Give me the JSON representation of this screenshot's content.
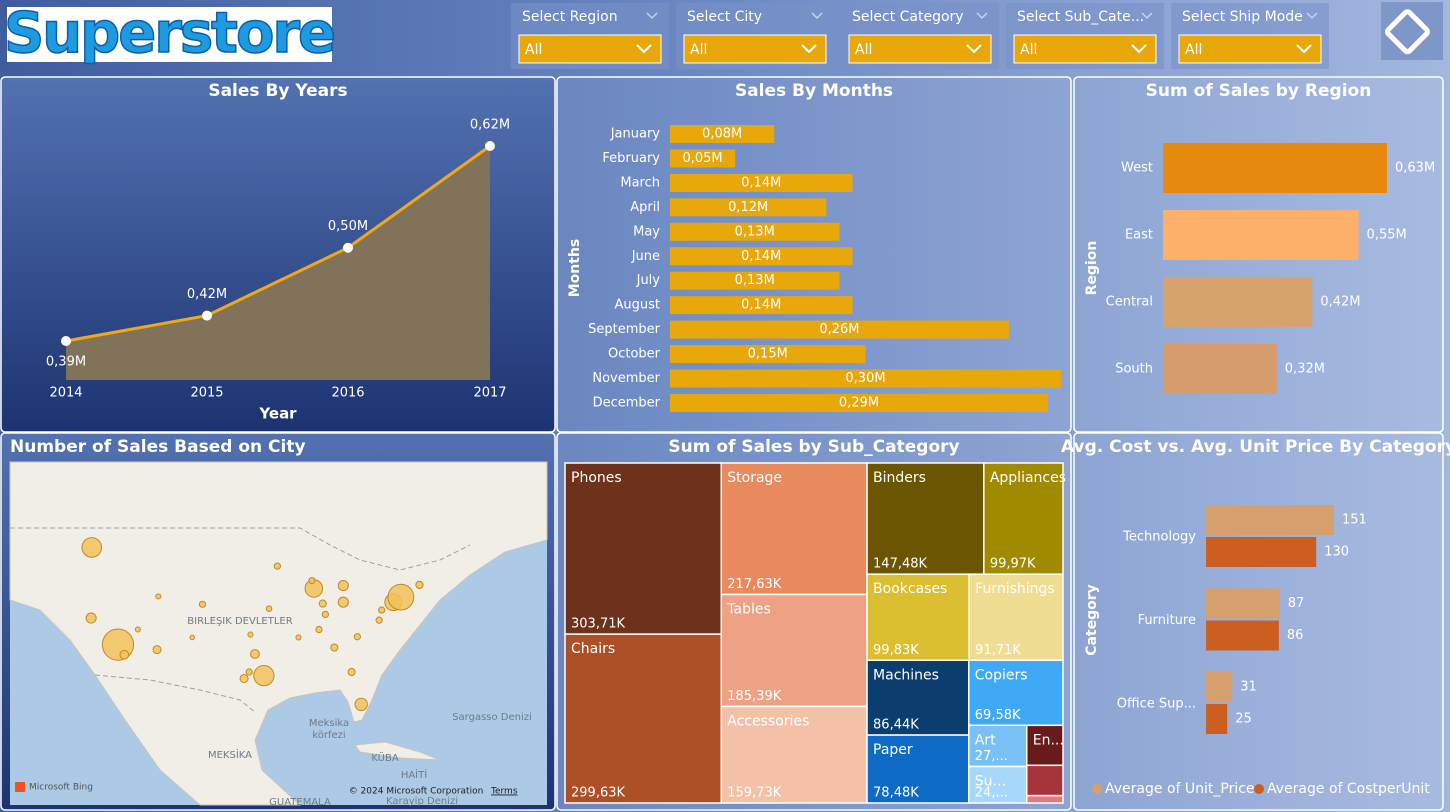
{
  "header": {
    "logo": "Superstore",
    "filters": [
      {
        "label": "Select Region",
        "value": "All"
      },
      {
        "label": "Select City",
        "value": "All"
      },
      {
        "label": "Select Category",
        "value": "All"
      },
      {
        "label": "Select Sub_Cate...",
        "value": "All"
      },
      {
        "label": "Select Ship Mode",
        "value": "All"
      }
    ]
  },
  "chart_data": [
    {
      "type": "area",
      "title": "Sales By Years",
      "x_label": "Year",
      "categories": [
        "2014",
        "2015",
        "2016",
        "2017"
      ],
      "values": [
        0.39,
        0.42,
        0.5,
        0.62
      ],
      "value_labels": [
        "0,39M",
        "0,42M",
        "0,50M",
        "0,62M"
      ],
      "color": "#f0a818",
      "fill": "#807359"
    },
    {
      "type": "bar",
      "horizontal": true,
      "title": "Sales By Months",
      "y_label": "Months",
      "categories": [
        "January",
        "February",
        "March",
        "April",
        "May",
        "June",
        "July",
        "August",
        "September",
        "October",
        "November",
        "December"
      ],
      "values": [
        0.08,
        0.05,
        0.14,
        0.12,
        0.13,
        0.14,
        0.13,
        0.14,
        0.26,
        0.15,
        0.3,
        0.29
      ],
      "value_labels": [
        "0,08M",
        "0,05M",
        "0,14M",
        "0,12M",
        "0,13M",
        "0,14M",
        "0,13M",
        "0,14M",
        "0,26M",
        "0,15M",
        "0,30M",
        "0,29M"
      ],
      "color": "#e8a80c"
    },
    {
      "type": "bar",
      "horizontal": true,
      "title": "Sum of Sales by Region",
      "y_label": "Region",
      "categories": [
        "West",
        "East",
        "Central",
        "South"
      ],
      "values": [
        0.63,
        0.55,
        0.42,
        0.32
      ],
      "value_labels": [
        "0,63M",
        "0,55M",
        "0,42M",
        "0,32M"
      ],
      "colors": [
        "#e8890f",
        "#fdb06a",
        "#d5a36b",
        "#d79c6e"
      ]
    },
    {
      "type": "map",
      "title": "Number of Sales Based on City",
      "labels": [
        "BIRLEŞIK DEVLETLER",
        "Meksika",
        "körfezi",
        "MEKSİKA",
        "Sargasso Denizi",
        "KÜBA",
        "HAİTİ",
        "GUATEMALA",
        "Karayip Denizi"
      ],
      "attribution": "© 2024 Microsoft Corporation",
      "terms": "Terms",
      "provider": "Microsoft Bing",
      "color": "#f2c15a",
      "points": [
        {
          "lon": -118.2,
          "lat": 34.1,
          "count": 380
        },
        {
          "lon": -122.4,
          "lat": 37.8,
          "count": 40
        },
        {
          "lon": -122.3,
          "lat": 47.6,
          "count": 150
        },
        {
          "lon": -117.2,
          "lat": 32.7,
          "count": 30
        },
        {
          "lon": -112.1,
          "lat": 33.4,
          "count": 25
        },
        {
          "lon": -115.1,
          "lat": 36.2,
          "count": 10
        },
        {
          "lon": -111.9,
          "lat": 40.8,
          "count": 10
        },
        {
          "lon": -105.0,
          "lat": 39.7,
          "count": 15
        },
        {
          "lon": -106.6,
          "lat": 35.1,
          "count": 8
        },
        {
          "lon": -95.4,
          "lat": 29.8,
          "count": 160
        },
        {
          "lon": -96.8,
          "lat": 32.8,
          "count": 30
        },
        {
          "lon": -98.5,
          "lat": 29.4,
          "count": 25
        },
        {
          "lon": -97.7,
          "lat": 30.3,
          "count": 15
        },
        {
          "lon": -97.5,
          "lat": 35.5,
          "count": 10
        },
        {
          "lon": -94.6,
          "lat": 39.1,
          "count": 12
        },
        {
          "lon": -93.3,
          "lat": 45.0,
          "count": 15
        },
        {
          "lon": -87.6,
          "lat": 41.9,
          "count": 120
        },
        {
          "lon": -87.9,
          "lat": 43.0,
          "count": 15
        },
        {
          "lon": -83.0,
          "lat": 42.3,
          "count": 40
        },
        {
          "lon": -83.0,
          "lat": 40.0,
          "count": 40
        },
        {
          "lon": -86.2,
          "lat": 39.8,
          "count": 20
        },
        {
          "lon": -85.8,
          "lat": 38.3,
          "count": 15
        },
        {
          "lon": -86.8,
          "lat": 36.2,
          "count": 15
        },
        {
          "lon": -90.0,
          "lat": 35.1,
          "count": 10
        },
        {
          "lon": -84.4,
          "lat": 33.7,
          "count": 20
        },
        {
          "lon": -81.7,
          "lat": 30.3,
          "count": 20
        },
        {
          "lon": -80.2,
          "lat": 25.8,
          "count": 60
        },
        {
          "lon": -80.8,
          "lat": 35.2,
          "count": 15
        },
        {
          "lon": -75.2,
          "lat": 40.0,
          "count": 110
        },
        {
          "lon": -74.0,
          "lat": 40.7,
          "count": 260
        },
        {
          "lon": -71.1,
          "lat": 42.4,
          "count": 20
        },
        {
          "lon": -77.0,
          "lat": 38.9,
          "count": 15
        },
        {
          "lon": -77.4,
          "lat": 37.5,
          "count": 15
        }
      ]
    },
    {
      "type": "treemap",
      "title": "Sum of Sales by Sub_Category",
      "names": [
        "Phones",
        "Chairs",
        "Storage",
        "Tables",
        "Accessories",
        "Binders",
        "Appliances",
        "Bookcases",
        "Furnishings",
        "Machines",
        "Paper",
        "Copiers",
        "Art",
        "Su...",
        "En...",
        null,
        null
      ],
      "values": [
        303.71,
        299.63,
        217.63,
        185.39,
        159.73,
        147.48,
        99.97,
        99.83,
        91.71,
        86.44,
        78.48,
        69.58,
        27.12,
        24.0,
        16.48,
        12.49,
        3.02
      ],
      "value_labels": [
        "303,71K",
        "299,63K",
        "217,63K",
        "185,39K",
        "159,73K",
        "147,48K",
        "99,97K",
        "99,83K",
        "91,71K",
        "86,44K",
        "78,48K",
        "69,58K",
        "27,...",
        "24,...",
        null,
        null,
        null
      ],
      "colors": [
        "#6e321c",
        "#ad5028",
        "#e8895e",
        "#eea283",
        "#f3c1a8",
        "#6b5500",
        "#a08a00",
        "#dcbf30",
        "#efdd93",
        "#0b3d6e",
        "#0e6ac5",
        "#3fa9f5",
        "#78c0f5",
        "#a7d7fb",
        "#6b1a1c",
        "#a8343b",
        "#e07a80"
      ]
    },
    {
      "type": "bar",
      "horizontal": true,
      "title": "Avg. Cost vs. Avg. Unit Price By Category",
      "y_label": "Category",
      "categories": [
        "Technology",
        "Furniture",
        "Office Sup..."
      ],
      "legend": "bottom",
      "series": [
        {
          "name": "Average of Unit_Price",
          "color": "#d5a06b",
          "values": [
            151,
            87,
            31
          ]
        },
        {
          "name": "Average of CostperUnit",
          "color": "#cc5e20",
          "values": [
            130,
            86,
            25
          ]
        }
      ]
    }
  ]
}
